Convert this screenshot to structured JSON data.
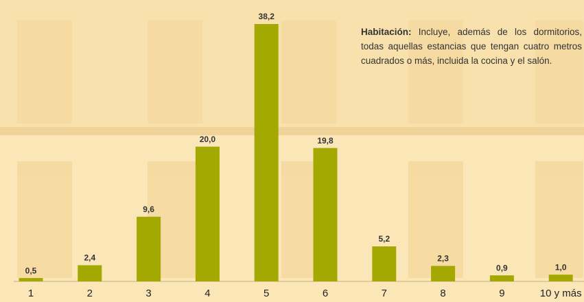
{
  "chart_data": {
    "type": "bar",
    "categories": [
      "1",
      "2",
      "3",
      "4",
      "5",
      "6",
      "7",
      "8",
      "9",
      "10 y más"
    ],
    "values": [
      0.5,
      2.4,
      9.6,
      20.0,
      38.2,
      19.8,
      5.2,
      2.3,
      0.9,
      1.0
    ],
    "value_labels": [
      "0,5",
      "2,4",
      "9,6",
      "20,0",
      "38,2",
      "19,8",
      "5,2",
      "2,3",
      "0,9",
      "1,0"
    ],
    "color": "#a3a900",
    "annotation": {
      "term": "Habitación:",
      "text": "Incluye, además de los dormitorios, todas aquellas estancias que tengan cuatro metros cuadrados o más, incluida la cocina y el salón."
    }
  }
}
